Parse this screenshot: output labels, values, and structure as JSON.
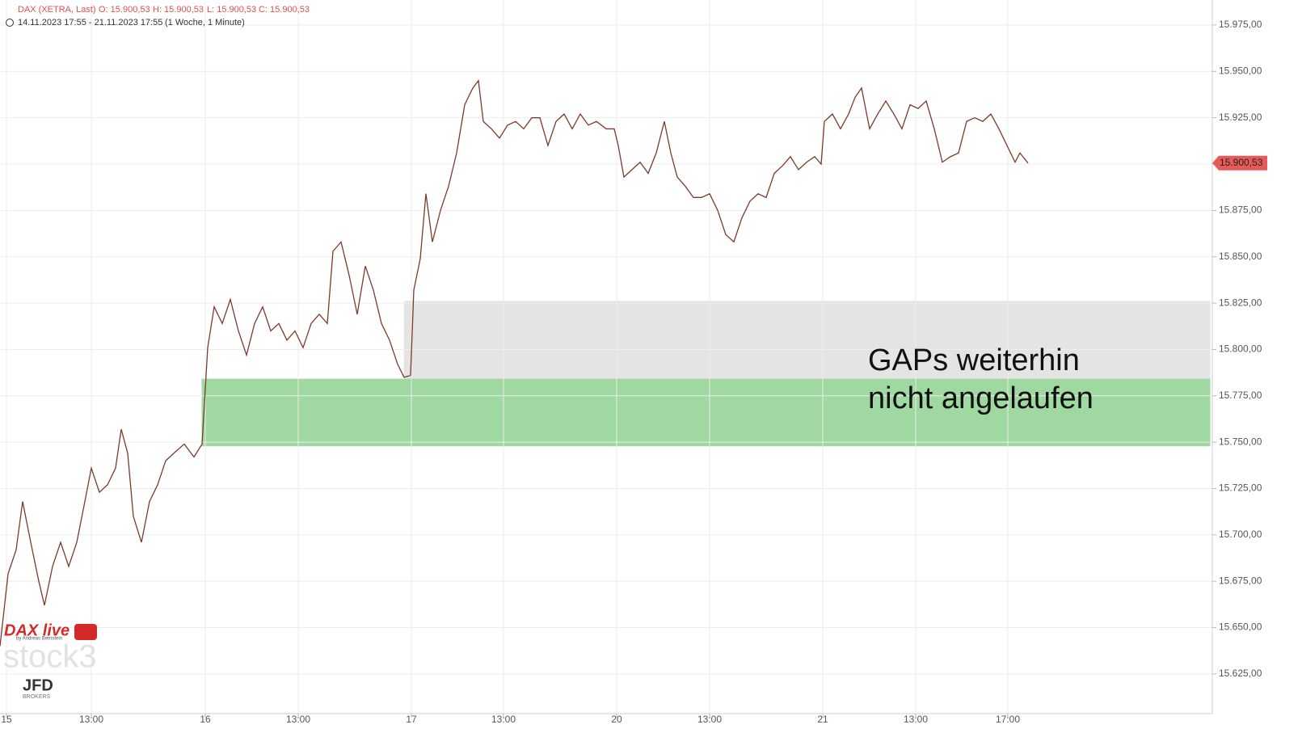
{
  "chart_data": {
    "type": "line",
    "header": [
      "DAX (XETRA, Last)",
      "O: 15.900,53",
      "H: 15.900,53",
      "L: 15.900,53",
      "C: 15.900,53"
    ],
    "range_text": "14.11.2023 17:55 - 21.11.2023 17:55",
    "interval_text": "(1 Woche, 1 Minute)",
    "annotation": [
      "GAPs weiterhin",
      "nicht angelaufen"
    ],
    "logos": {
      "dax_live": "DAX live",
      "dax_live_sub": "by Andreas Bernstein",
      "stock3": "stock3",
      "jfd": "JFD",
      "jfd_sub": "BROKERS"
    },
    "color": "#7a3b2c",
    "grid": true,
    "last_price": {
      "value": 15900.53,
      "label": "15.900,53",
      "color": "#e85a5a"
    },
    "zones": [
      {
        "x": [
          500,
          1497
        ],
        "y": [
          15784,
          15826
        ],
        "color": "#e4e4e4"
      },
      {
        "x": [
          250,
          1497
        ],
        "y": [
          15748,
          15784
        ],
        "color": "#9fd8a0"
      }
    ],
    "xlim": [
      0,
      1500
    ],
    "xticks": [
      {
        "value": 8,
        "label": "15"
      },
      {
        "value": 113,
        "label": "13:00"
      },
      {
        "value": 254,
        "label": "16"
      },
      {
        "value": 369,
        "label": "13:00"
      },
      {
        "value": 509,
        "label": "17"
      },
      {
        "value": 623,
        "label": "13:00"
      },
      {
        "value": 763,
        "label": "20"
      },
      {
        "value": 878,
        "label": "13:00"
      },
      {
        "value": 1018,
        "label": "21"
      },
      {
        "value": 1133,
        "label": "13:00"
      },
      {
        "value": 1247,
        "label": "17:00"
      }
    ],
    "ylim": [
      15603.6,
      15988.5
    ],
    "yticks": [
      {
        "value": 15625,
        "label": "15.625,00"
      },
      {
        "value": 15650,
        "label": "15.650,00"
      },
      {
        "value": 15675,
        "label": "15.675,00"
      },
      {
        "value": 15700,
        "label": "15.700,00"
      },
      {
        "value": 15725,
        "label": "15.725,00"
      },
      {
        "value": 15750,
        "label": "15.750,00"
      },
      {
        "value": 15775,
        "label": "15.775,00"
      },
      {
        "value": 15800,
        "label": "15.800,00"
      },
      {
        "value": 15825,
        "label": "15.825,00"
      },
      {
        "value": 15850,
        "label": "15.850,00"
      },
      {
        "value": 15875,
        "label": "15.875,00"
      },
      {
        "value": 15900,
        "label": "15.900,00"
      },
      {
        "value": 15925,
        "label": "15.925,00"
      },
      {
        "value": 15950,
        "label": "15.950,00"
      },
      {
        "value": 15975,
        "label": "15.975,00"
      }
    ],
    "x": [
      0,
      10,
      20,
      28,
      38,
      48,
      55,
      65,
      75,
      85,
      95,
      105,
      113,
      123,
      133,
      143,
      150,
      158,
      165,
      175,
      185,
      195,
      205,
      215,
      228,
      240,
      250,
      257,
      265,
      275,
      285,
      295,
      305,
      315,
      325,
      335,
      345,
      355,
      365,
      375,
      385,
      395,
      405,
      412,
      422,
      432,
      442,
      452,
      462,
      472,
      482,
      492,
      500,
      508,
      512,
      520,
      527,
      535,
      545,
      555,
      565,
      575,
      585,
      592,
      598,
      608,
      618,
      628,
      638,
      648,
      658,
      668,
      678,
      688,
      698,
      708,
      718,
      728,
      738,
      750,
      760,
      765,
      772,
      782,
      792,
      802,
      812,
      822,
      830,
      838,
      848,
      858,
      868,
      878,
      888,
      898,
      908,
      918,
      928,
      938,
      948,
      958,
      968,
      978,
      988,
      998,
      1008,
      1016,
      1020,
      1030,
      1040,
      1050,
      1058,
      1066,
      1076,
      1086,
      1096,
      1106,
      1116,
      1126,
      1136,
      1146,
      1156,
      1166,
      1176,
      1186,
      1196,
      1206,
      1216,
      1226,
      1236,
      1246,
      1256,
      1262,
      1272
    ],
    "values": [
      15640,
      15679,
      15692,
      15718,
      15696,
      15675,
      15662,
      15683,
      15696,
      15683,
      15696,
      15718,
      15736,
      15723,
      15727,
      15736,
      15757,
      15744,
      15710,
      15696,
      15718,
      15727,
      15740,
      15744,
      15749,
      15742,
      15749,
      15801,
      15823,
      15814,
      15827,
      15810,
      15797,
      15814,
      15823,
      15810,
      15814,
      15805,
      15810,
      15801,
      15814,
      15819,
      15814,
      15853,
      15858,
      15840,
      15819,
      15845,
      15832,
      15814,
      15805,
      15792,
      15785,
      15786,
      15832,
      15849,
      15884,
      15858,
      15875,
      15888,
      15906,
      15932,
      15941,
      15945,
      15923,
      15919,
      15914,
      15921,
      15923,
      15919,
      15925,
      15925,
      15910,
      15923,
      15927,
      15919,
      15927,
      15921,
      15923,
      15919,
      15919,
      15910,
      15893,
      15897,
      15901,
      15895,
      15906,
      15923,
      15906,
      15893,
      15888,
      15882,
      15882,
      15884,
      15875,
      15862,
      15858,
      15871,
      15880,
      15884,
      15882,
      15895,
      15899,
      15904,
      15897,
      15901,
      15904,
      15900,
      15923,
      15927,
      15919,
      15927,
      15936,
      15941,
      15919,
      15927,
      15934,
      15927,
      15919,
      15932,
      15930,
      15934,
      15919,
      15901,
      15904,
      15906,
      15923,
      15925,
      15923,
      15927,
      15919,
      15910,
      15901,
      15906,
      15900.53
    ]
  }
}
